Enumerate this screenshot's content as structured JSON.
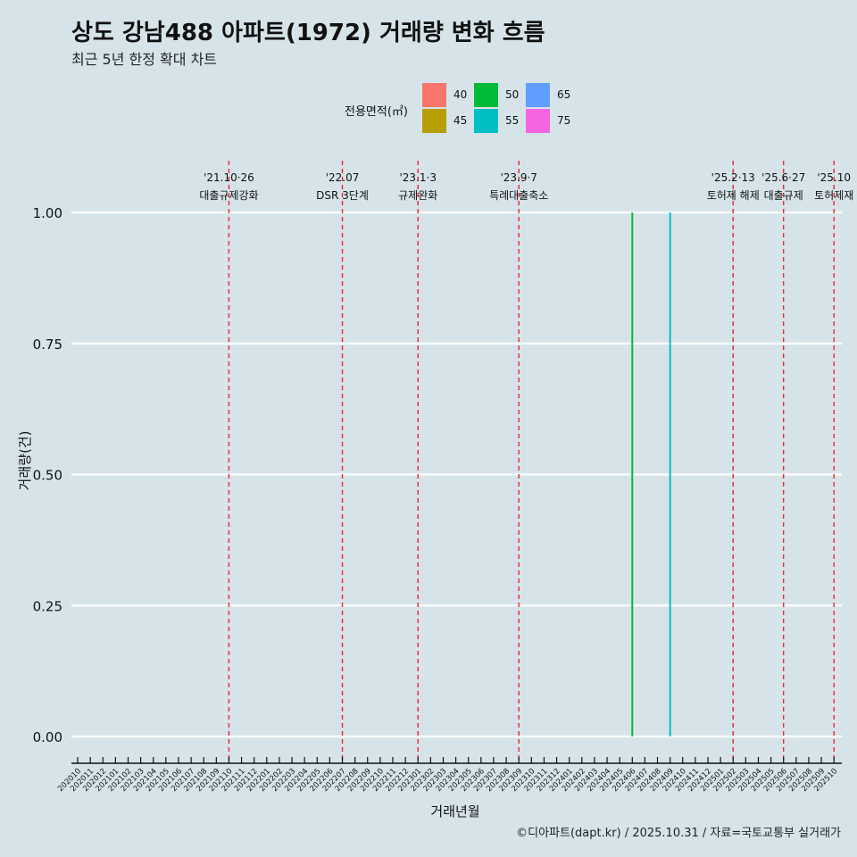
{
  "header": {
    "title": "상도 강남488 아파트(1972) 거래량 변화 흐름",
    "subtitle": "최근 5년 한정 확대 차트"
  },
  "legend": {
    "title": "전용면적(㎡)",
    "items": [
      {
        "label": "40",
        "color": "#f8766d"
      },
      {
        "label": "45",
        "color": "#b79f00"
      },
      {
        "label": "50",
        "color": "#00ba38"
      },
      {
        "label": "55",
        "color": "#00bfc4"
      },
      {
        "label": "65",
        "color": "#619cff"
      },
      {
        "label": "75",
        "color": "#f564e3"
      }
    ]
  },
  "footer": {
    "caption": "©디아파트(dapt.kr) / 2025.10.31 / 자료=국토교통부 실거래가"
  },
  "chart_data": {
    "type": "bar",
    "xlabel": "거래년월",
    "ylabel": "거래량(건)",
    "ylim": [
      0,
      1
    ],
    "yticks": [
      "0.00",
      "0.25",
      "0.50",
      "0.75",
      "1.00"
    ],
    "categories": [
      "202010",
      "202011",
      "202012",
      "202101",
      "202102",
      "202103",
      "202104",
      "202105",
      "202106",
      "202107",
      "202108",
      "202109",
      "202110",
      "202111",
      "202112",
      "202201",
      "202202",
      "202203",
      "202204",
      "202205",
      "202206",
      "202207",
      "202208",
      "202209",
      "202210",
      "202211",
      "202212",
      "202301",
      "202302",
      "202303",
      "202304",
      "202305",
      "202306",
      "202307",
      "202308",
      "202309",
      "202310",
      "202311",
      "202312",
      "202401",
      "202402",
      "202403",
      "202404",
      "202405",
      "202406",
      "202407",
      "202408",
      "202409",
      "202410",
      "202411",
      "202412",
      "202501",
      "202502",
      "202503",
      "202504",
      "202505",
      "202506",
      "202507",
      "202508",
      "202509",
      "202510"
    ],
    "series": [
      {
        "name": "50",
        "color": "#00ba38",
        "points": [
          {
            "x": "202406",
            "y": 1
          }
        ]
      },
      {
        "name": "55",
        "color": "#00bfc4",
        "points": [
          {
            "x": "202409",
            "y": 1
          }
        ]
      }
    ],
    "events": [
      {
        "month": "202110",
        "date": "'21.10·26",
        "label": "대출규제강화"
      },
      {
        "month": "202207",
        "date": "'22.07",
        "label": "DSR 3단계"
      },
      {
        "month": "202301",
        "date": "'23.1·3",
        "label": "규제완화"
      },
      {
        "month": "202309",
        "date": "'23.9·7",
        "label": "특례대출축소"
      },
      {
        "month": "202502",
        "date": "'25.2·13",
        "label": "토허제 해제"
      },
      {
        "month": "202506",
        "date": "'25.6·27",
        "label": "대출규제"
      },
      {
        "month": "202510",
        "date": "'25.10",
        "label": "토허제재"
      }
    ]
  }
}
